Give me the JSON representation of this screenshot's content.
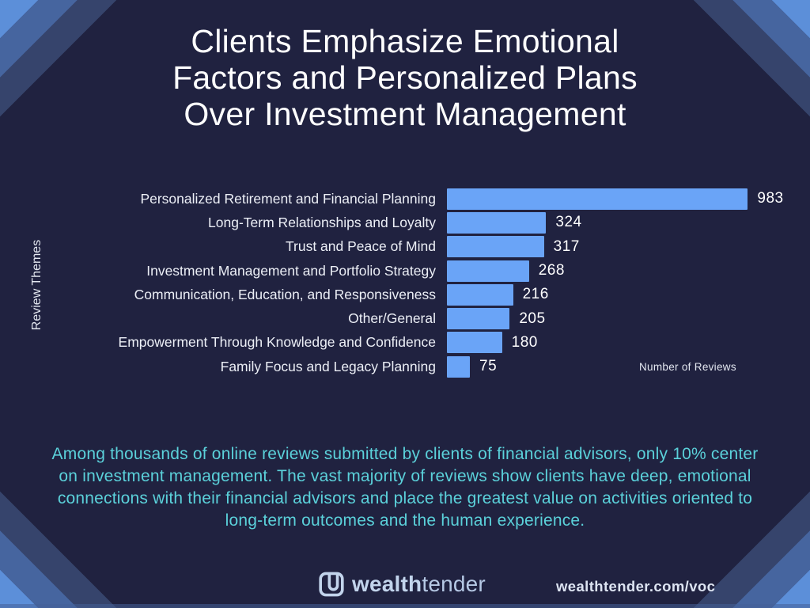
{
  "title": {
    "lines": [
      "Clients Emphasize Emotional",
      "Factors and Personalized Plans",
      "Over Investment Management"
    ]
  },
  "chart_data": {
    "type": "bar",
    "orientation": "horizontal",
    "categories": [
      "Personalized Retirement and Financial Planning",
      "Long-Term Relationships and Loyalty",
      "Trust and Peace of Mind",
      "Investment Management and Portfolio Strategy",
      "Communication, Education, and Responsiveness",
      "Other/General",
      "Empowerment Through Knowledge and Confidence",
      "Family Focus and Legacy Planning"
    ],
    "values": [
      983,
      324,
      317,
      268,
      216,
      205,
      180,
      75
    ],
    "xlabel": "Number of Reviews",
    "ylabel": "Review Themes",
    "xlim": [
      0,
      1000
    ],
    "grid": false,
    "legend": "none",
    "data_labels_shown": true,
    "bar_color": "#6aa4f7"
  },
  "summary": {
    "text": "Among thousands of online reviews submitted by clients of financial advisors, only 10% center on investment management. The vast majority of reviews show clients have deep, emotional connections with their financial advisors and place the greatest value on activities oriented to long-term outcomes and the human experience."
  },
  "footer": {
    "brand_bold": "wealth",
    "brand_light": "tender",
    "url": "wealthtender.com/voc"
  },
  "colors": {
    "background": "#202240",
    "bar": "#6aa4f7",
    "accent_teal": "#5bd1da",
    "corner_bright": "#5c8fd9",
    "corner_medium": "#46659f",
    "corner_muted": "#36446c",
    "logo_blue": "#c2d4ec"
  }
}
